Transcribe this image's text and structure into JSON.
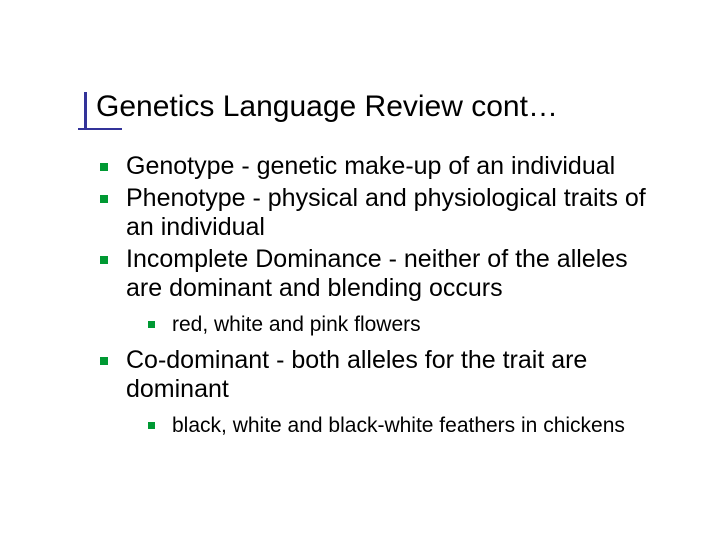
{
  "colors": {
    "background": "#ffffff",
    "text": "#000000",
    "accent_bar": "#333399",
    "bullet": "#009933"
  },
  "typography": {
    "title_fontsize": 30,
    "body_fontsize": 25,
    "sub_fontsize": 21,
    "font_family": "Arial"
  },
  "slide": {
    "title": "Genetics Language Review cont…",
    "bullets": [
      {
        "text": "Genotype - genetic make-up of an individual",
        "sub": []
      },
      {
        "text": "Phenotype - physical and physiological traits of an individual",
        "sub": []
      },
      {
        "text": "Incomplete Dominance - neither of the alleles are dominant and blending occurs",
        "sub": [
          "red, white and pink flowers"
        ]
      },
      {
        "text": "Co-dominant - both alleles for the trait are dominant",
        "sub": [
          "black, white and black-white feathers in chickens"
        ]
      }
    ]
  }
}
